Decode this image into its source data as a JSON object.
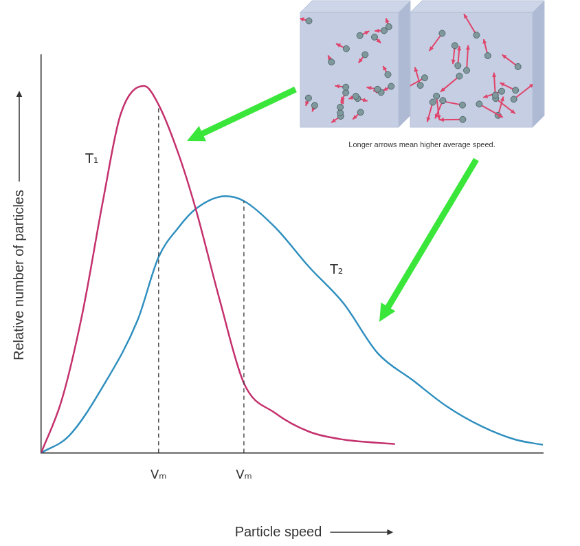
{
  "chart_data": {
    "type": "line",
    "x_label": "Particle speed",
    "y_label": "Relative number of particles",
    "xlim": [
      0,
      100
    ],
    "ylim": [
      0,
      100
    ],
    "xticks": [
      {
        "value": 23.4,
        "label": "Vₘ"
      },
      {
        "value": 40.4,
        "label": "Vₘ"
      }
    ],
    "yticks": [],
    "tick_labels": "x",
    "grid": false,
    "series": [
      {
        "name": "T₁",
        "color": "#c4316d",
        "x": [
          0,
          4.1,
          8.2,
          12.3,
          15.8,
          20.5,
          23.4,
          27.4,
          30.8,
          35.6,
          40.4,
          46.6,
          53.4,
          60.3,
          70.5
        ],
        "values": [
          0,
          13.3,
          35,
          63.3,
          85,
          92.2,
          87.5,
          75,
          61.3,
          38.3,
          17.5,
          10,
          5.3,
          3.3,
          2.2
        ]
      },
      {
        "name": "T₂",
        "color": "#2f8fbf",
        "x": [
          0,
          5.5,
          12.3,
          19.2,
          23.4,
          27.4,
          30.8,
          36.7,
          40.4,
          46.6,
          53.4,
          60.3,
          67.1,
          74,
          80.8,
          87.7,
          94.5,
          100
        ],
        "values": [
          0,
          4.2,
          16.7,
          33.3,
          49.2,
          56.7,
          61.3,
          64.5,
          63.3,
          56.7,
          46.7,
          37.5,
          25,
          18.3,
          11.7,
          6.7,
          3.3,
          2
        ]
      }
    ],
    "annotations": [
      "Longer arrows mean higher average speed."
    ]
  }
}
